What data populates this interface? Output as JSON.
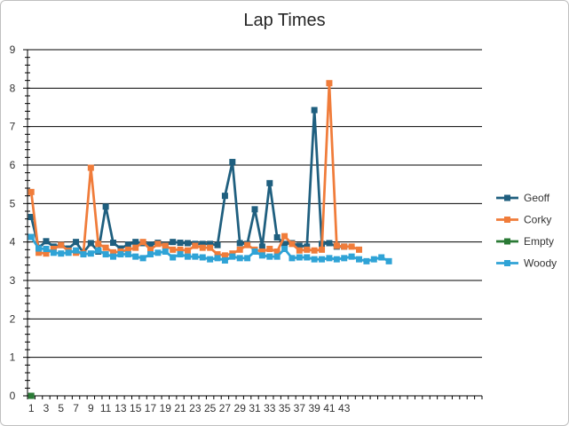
{
  "chart_data": {
    "type": "line",
    "title": "Lap Times",
    "xlabel": "",
    "ylabel": "",
    "ylim": [
      0,
      9
    ],
    "y_ticks": [
      0,
      1,
      2,
      3,
      4,
      5,
      6,
      7,
      8,
      9
    ],
    "x_tick_labels": [
      "1",
      "3",
      "5",
      "7",
      "9",
      "11",
      "13",
      "15",
      "17",
      "19",
      "21",
      "23",
      "25",
      "27",
      "29",
      "31",
      "33",
      "35",
      "37",
      "39",
      "41",
      "43"
    ],
    "x_count": 61,
    "grid": "horizontal major",
    "legend_position": "right",
    "series": [
      {
        "name": "Geoff",
        "color": "#1f5f7f",
        "values": [
          4.65,
          3.85,
          4.02,
          3.88,
          3.92,
          3.83,
          4.0,
          3.72,
          3.97,
          3.75,
          4.92,
          3.98,
          3.83,
          3.93,
          4.0,
          3.97,
          3.93,
          3.98,
          3.92,
          4.0,
          3.98,
          3.97,
          3.95,
          3.95,
          3.95,
          3.92,
          5.2,
          6.08,
          3.97,
          3.95,
          4.85,
          3.88,
          5.53,
          4.12,
          3.95,
          3.97,
          3.9,
          3.88,
          7.43,
          3.95,
          3.97,
          3.88,
          3.88
        ]
      },
      {
        "name": "Corky",
        "color": "#f07c3a",
        "values": [
          5.3,
          3.72,
          3.7,
          3.82,
          3.92,
          3.77,
          3.72,
          3.7,
          5.93,
          3.95,
          3.85,
          3.73,
          3.75,
          3.8,
          3.85,
          4.0,
          3.8,
          3.95,
          3.9,
          3.8,
          3.8,
          3.78,
          3.9,
          3.85,
          3.85,
          3.68,
          3.65,
          3.7,
          3.8,
          3.92,
          3.8,
          3.75,
          3.82,
          3.75,
          4.15,
          3.95,
          3.78,
          3.8,
          3.78,
          3.8,
          8.13,
          3.9,
          3.88,
          3.88,
          3.8
        ]
      },
      {
        "name": "Empty",
        "color": "#2a7a35",
        "values": [
          0
        ]
      },
      {
        "name": "Woody",
        "color": "#2fa3d6",
        "values": [
          4.13,
          3.83,
          3.82,
          3.72,
          3.7,
          3.72,
          3.78,
          3.68,
          3.7,
          3.78,
          3.68,
          3.62,
          3.68,
          3.68,
          3.62,
          3.58,
          3.68,
          3.72,
          3.75,
          3.6,
          3.68,
          3.62,
          3.62,
          3.6,
          3.55,
          3.58,
          3.52,
          3.62,
          3.58,
          3.58,
          3.75,
          3.65,
          3.62,
          3.62,
          3.82,
          3.58,
          3.6,
          3.6,
          3.55,
          3.55,
          3.58,
          3.55,
          3.58,
          3.62,
          3.55,
          3.5,
          3.55,
          3.6,
          3.5
        ]
      }
    ]
  }
}
